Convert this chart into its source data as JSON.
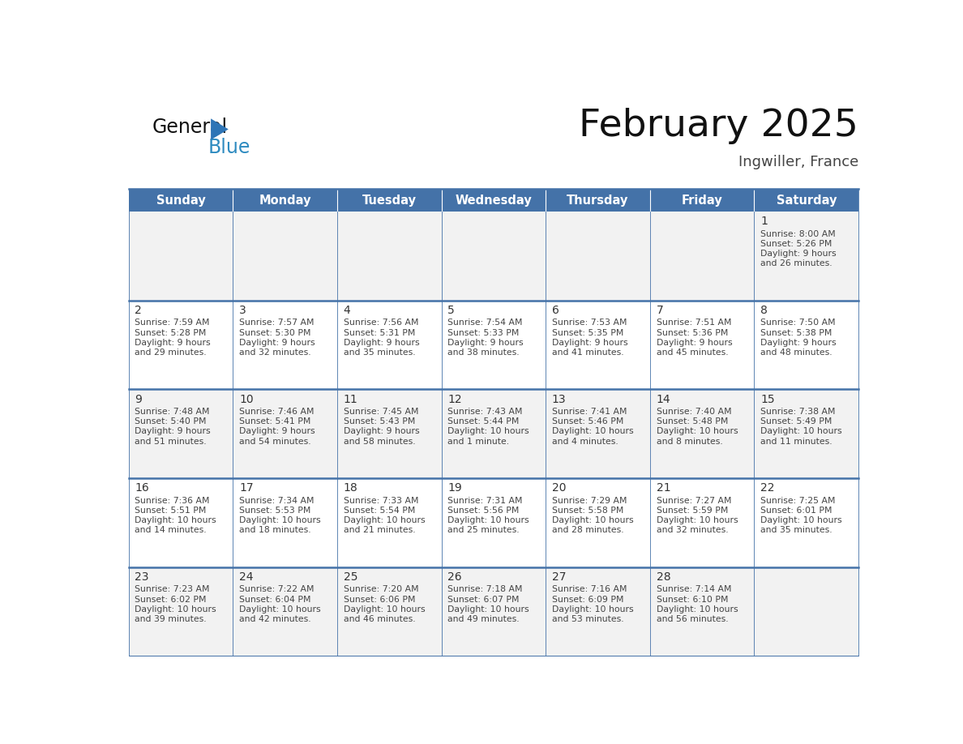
{
  "title": "February 2025",
  "subtitle": "Ingwiller, France",
  "days_of_week": [
    "Sunday",
    "Monday",
    "Tuesday",
    "Wednesday",
    "Thursday",
    "Friday",
    "Saturday"
  ],
  "header_bg": "#4472A8",
  "header_text_color": "#FFFFFF",
  "row_colors": [
    "#F2F2F2",
    "#FFFFFF",
    "#F2F2F2",
    "#FFFFFF",
    "#F2F2F2"
  ],
  "cell_border_color": "#3B5998",
  "grid_line_color": "#4472A8",
  "day_number_color": "#333333",
  "info_text_color": "#444444",
  "title_color": "#111111",
  "subtitle_color": "#444444",
  "logo_general_color": "#111111",
  "logo_blue_color": "#2E8BC0",
  "logo_triangle_color": "#2E75B6",
  "calendar_data": [
    [
      null,
      null,
      null,
      null,
      null,
      null,
      {
        "day": 1,
        "sunrise": "8:00 AM",
        "sunset": "5:26 PM",
        "daylight": "9 hours and 26 minutes."
      }
    ],
    [
      {
        "day": 2,
        "sunrise": "7:59 AM",
        "sunset": "5:28 PM",
        "daylight": "9 hours and 29 minutes."
      },
      {
        "day": 3,
        "sunrise": "7:57 AM",
        "sunset": "5:30 PM",
        "daylight": "9 hours and 32 minutes."
      },
      {
        "day": 4,
        "sunrise": "7:56 AM",
        "sunset": "5:31 PM",
        "daylight": "9 hours and 35 minutes."
      },
      {
        "day": 5,
        "sunrise": "7:54 AM",
        "sunset": "5:33 PM",
        "daylight": "9 hours and 38 minutes."
      },
      {
        "day": 6,
        "sunrise": "7:53 AM",
        "sunset": "5:35 PM",
        "daylight": "9 hours and 41 minutes."
      },
      {
        "day": 7,
        "sunrise": "7:51 AM",
        "sunset": "5:36 PM",
        "daylight": "9 hours and 45 minutes."
      },
      {
        "day": 8,
        "sunrise": "7:50 AM",
        "sunset": "5:38 PM",
        "daylight": "9 hours and 48 minutes."
      }
    ],
    [
      {
        "day": 9,
        "sunrise": "7:48 AM",
        "sunset": "5:40 PM",
        "daylight": "9 hours and 51 minutes."
      },
      {
        "day": 10,
        "sunrise": "7:46 AM",
        "sunset": "5:41 PM",
        "daylight": "9 hours and 54 minutes."
      },
      {
        "day": 11,
        "sunrise": "7:45 AM",
        "sunset": "5:43 PM",
        "daylight": "9 hours and 58 minutes."
      },
      {
        "day": 12,
        "sunrise": "7:43 AM",
        "sunset": "5:44 PM",
        "daylight": "10 hours and 1 minute."
      },
      {
        "day": 13,
        "sunrise": "7:41 AM",
        "sunset": "5:46 PM",
        "daylight": "10 hours and 4 minutes."
      },
      {
        "day": 14,
        "sunrise": "7:40 AM",
        "sunset": "5:48 PM",
        "daylight": "10 hours and 8 minutes."
      },
      {
        "day": 15,
        "sunrise": "7:38 AM",
        "sunset": "5:49 PM",
        "daylight": "10 hours and 11 minutes."
      }
    ],
    [
      {
        "day": 16,
        "sunrise": "7:36 AM",
        "sunset": "5:51 PM",
        "daylight": "10 hours and 14 minutes."
      },
      {
        "day": 17,
        "sunrise": "7:34 AM",
        "sunset": "5:53 PM",
        "daylight": "10 hours and 18 minutes."
      },
      {
        "day": 18,
        "sunrise": "7:33 AM",
        "sunset": "5:54 PM",
        "daylight": "10 hours and 21 minutes."
      },
      {
        "day": 19,
        "sunrise": "7:31 AM",
        "sunset": "5:56 PM",
        "daylight": "10 hours and 25 minutes."
      },
      {
        "day": 20,
        "sunrise": "7:29 AM",
        "sunset": "5:58 PM",
        "daylight": "10 hours and 28 minutes."
      },
      {
        "day": 21,
        "sunrise": "7:27 AM",
        "sunset": "5:59 PM",
        "daylight": "10 hours and 32 minutes."
      },
      {
        "day": 22,
        "sunrise": "7:25 AM",
        "sunset": "6:01 PM",
        "daylight": "10 hours and 35 minutes."
      }
    ],
    [
      {
        "day": 23,
        "sunrise": "7:23 AM",
        "sunset": "6:02 PM",
        "daylight": "10 hours and 39 minutes."
      },
      {
        "day": 24,
        "sunrise": "7:22 AM",
        "sunset": "6:04 PM",
        "daylight": "10 hours and 42 minutes."
      },
      {
        "day": 25,
        "sunrise": "7:20 AM",
        "sunset": "6:06 PM",
        "daylight": "10 hours and 46 minutes."
      },
      {
        "day": 26,
        "sunrise": "7:18 AM",
        "sunset": "6:07 PM",
        "daylight": "10 hours and 49 minutes."
      },
      {
        "day": 27,
        "sunrise": "7:16 AM",
        "sunset": "6:09 PM",
        "daylight": "10 hours and 53 minutes."
      },
      {
        "day": 28,
        "sunrise": "7:14 AM",
        "sunset": "6:10 PM",
        "daylight": "10 hours and 56 minutes."
      },
      null
    ]
  ]
}
